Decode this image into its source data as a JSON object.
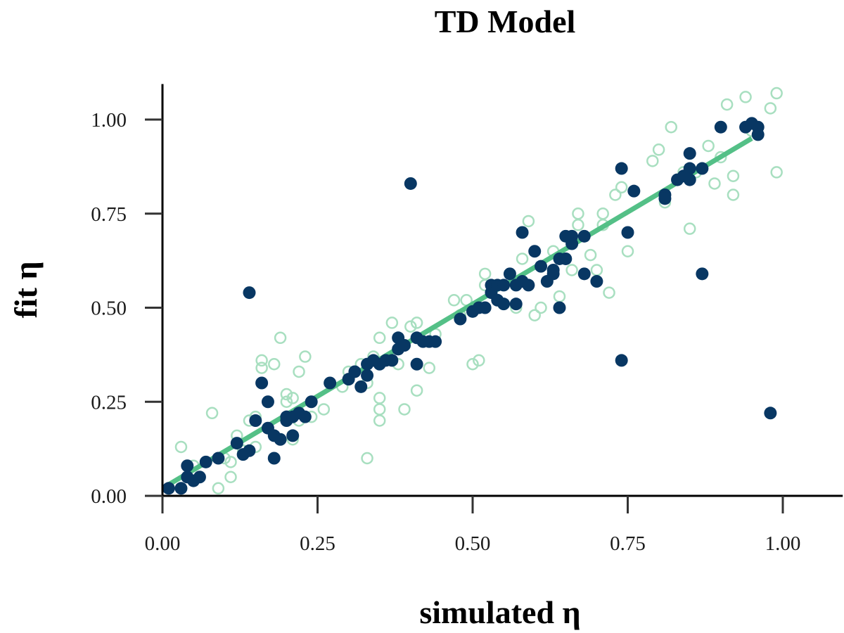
{
  "chart_data": {
    "type": "scatter",
    "title": "TD Model",
    "xlabel": "simulated η",
    "ylabel": "fit η",
    "xlim": [
      0.0,
      1.1
    ],
    "ylim": [
      0.0,
      1.1
    ],
    "xticks": [
      0.0,
      0.25,
      0.5,
      0.75,
      1.0
    ],
    "yticks": [
      0.0,
      0.25,
      0.5,
      0.75,
      1.0
    ],
    "xtick_labels": [
      "0.00",
      "0.25",
      "0.50",
      "0.75",
      "1.00"
    ],
    "ytick_labels": [
      "0.00",
      "0.25",
      "0.50",
      "0.75",
      "1.00"
    ],
    "grid": false,
    "legend": null,
    "colors": {
      "filled": "#083763",
      "open": "#a8dfc0",
      "line": "#54c087",
      "axis": "#000000",
      "tick": "#333333"
    },
    "fit_line": {
      "x": [
        0.01,
        0.95
      ],
      "y": [
        0.03,
        0.95
      ]
    },
    "series": [
      {
        "name": "open",
        "marker": "open-circle",
        "points": [
          [
            0.03,
            0.13
          ],
          [
            0.05,
            0.08
          ],
          [
            0.08,
            0.22
          ],
          [
            0.09,
            0.02
          ],
          [
            0.1,
            0.1
          ],
          [
            0.11,
            0.05
          ],
          [
            0.11,
            0.09
          ],
          [
            0.12,
            0.16
          ],
          [
            0.13,
            0.12
          ],
          [
            0.14,
            0.2
          ],
          [
            0.15,
            0.13
          ],
          [
            0.15,
            0.21
          ],
          [
            0.16,
            0.36
          ],
          [
            0.16,
            0.34
          ],
          [
            0.18,
            0.35
          ],
          [
            0.19,
            0.42
          ],
          [
            0.2,
            0.27
          ],
          [
            0.2,
            0.25
          ],
          [
            0.21,
            0.26
          ],
          [
            0.21,
            0.15
          ],
          [
            0.22,
            0.33
          ],
          [
            0.22,
            0.2
          ],
          [
            0.23,
            0.37
          ],
          [
            0.24,
            0.21
          ],
          [
            0.26,
            0.23
          ],
          [
            0.29,
            0.29
          ],
          [
            0.3,
            0.33
          ],
          [
            0.32,
            0.35
          ],
          [
            0.33,
            0.1
          ],
          [
            0.33,
            0.3
          ],
          [
            0.34,
            0.37
          ],
          [
            0.35,
            0.2
          ],
          [
            0.35,
            0.23
          ],
          [
            0.35,
            0.26
          ],
          [
            0.35,
            0.42
          ],
          [
            0.37,
            0.46
          ],
          [
            0.38,
            0.35
          ],
          [
            0.39,
            0.23
          ],
          [
            0.4,
            0.45
          ],
          [
            0.41,
            0.28
          ],
          [
            0.41,
            0.46
          ],
          [
            0.43,
            0.34
          ],
          [
            0.44,
            0.43
          ],
          [
            0.47,
            0.52
          ],
          [
            0.48,
            0.48
          ],
          [
            0.49,
            0.52
          ],
          [
            0.5,
            0.35
          ],
          [
            0.51,
            0.36
          ],
          [
            0.52,
            0.59
          ],
          [
            0.52,
            0.56
          ],
          [
            0.55,
            0.51
          ],
          [
            0.57,
            0.5
          ],
          [
            0.58,
            0.63
          ],
          [
            0.59,
            0.73
          ],
          [
            0.6,
            0.48
          ],
          [
            0.61,
            0.5
          ],
          [
            0.63,
            0.65
          ],
          [
            0.64,
            0.53
          ],
          [
            0.66,
            0.6
          ],
          [
            0.67,
            0.75
          ],
          [
            0.67,
            0.72
          ],
          [
            0.69,
            0.64
          ],
          [
            0.7,
            0.6
          ],
          [
            0.71,
            0.75
          ],
          [
            0.71,
            0.72
          ],
          [
            0.72,
            0.54
          ],
          [
            0.73,
            0.8
          ],
          [
            0.74,
            0.82
          ],
          [
            0.75,
            0.65
          ],
          [
            0.79,
            0.89
          ],
          [
            0.8,
            0.92
          ],
          [
            0.81,
            0.78
          ],
          [
            0.82,
            0.98
          ],
          [
            0.84,
            0.86
          ],
          [
            0.85,
            0.71
          ],
          [
            0.86,
            0.86
          ],
          [
            0.88,
            0.93
          ],
          [
            0.89,
            0.83
          ],
          [
            0.9,
            0.9
          ],
          [
            0.91,
            1.04
          ],
          [
            0.92,
            0.8
          ],
          [
            0.92,
            0.85
          ],
          [
            0.94,
            1.06
          ],
          [
            0.95,
            0.97
          ],
          [
            0.98,
            1.03
          ],
          [
            0.99,
            1.07
          ],
          [
            0.99,
            0.86
          ]
        ]
      },
      {
        "name": "filled",
        "marker": "filled-circle",
        "points": [
          [
            0.01,
            0.02
          ],
          [
            0.03,
            0.02
          ],
          [
            0.04,
            0.08
          ],
          [
            0.04,
            0.05
          ],
          [
            0.05,
            0.04
          ],
          [
            0.06,
            0.05
          ],
          [
            0.07,
            0.09
          ],
          [
            0.09,
            0.1
          ],
          [
            0.12,
            0.14
          ],
          [
            0.13,
            0.11
          ],
          [
            0.14,
            0.12
          ],
          [
            0.14,
            0.54
          ],
          [
            0.15,
            0.2
          ],
          [
            0.16,
            0.3
          ],
          [
            0.17,
            0.25
          ],
          [
            0.17,
            0.18
          ],
          [
            0.18,
            0.16
          ],
          [
            0.18,
            0.1
          ],
          [
            0.19,
            0.15
          ],
          [
            0.2,
            0.2
          ],
          [
            0.2,
            0.21
          ],
          [
            0.21,
            0.16
          ],
          [
            0.21,
            0.21
          ],
          [
            0.22,
            0.22
          ],
          [
            0.23,
            0.21
          ],
          [
            0.24,
            0.25
          ],
          [
            0.27,
            0.3
          ],
          [
            0.3,
            0.31
          ],
          [
            0.31,
            0.33
          ],
          [
            0.32,
            0.29
          ],
          [
            0.33,
            0.32
          ],
          [
            0.33,
            0.35
          ],
          [
            0.34,
            0.36
          ],
          [
            0.35,
            0.35
          ],
          [
            0.36,
            0.36
          ],
          [
            0.37,
            0.36
          ],
          [
            0.38,
            0.42
          ],
          [
            0.38,
            0.39
          ],
          [
            0.39,
            0.4
          ],
          [
            0.41,
            0.35
          ],
          [
            0.41,
            0.42
          ],
          [
            0.42,
            0.41
          ],
          [
            0.43,
            0.41
          ],
          [
            0.44,
            0.41
          ],
          [
            0.4,
            0.83
          ],
          [
            0.48,
            0.47
          ],
          [
            0.5,
            0.49
          ],
          [
            0.51,
            0.5
          ],
          [
            0.52,
            0.5
          ],
          [
            0.53,
            0.54
          ],
          [
            0.53,
            0.56
          ],
          [
            0.54,
            0.56
          ],
          [
            0.54,
            0.52
          ],
          [
            0.55,
            0.51
          ],
          [
            0.55,
            0.56
          ],
          [
            0.56,
            0.59
          ],
          [
            0.57,
            0.51
          ],
          [
            0.57,
            0.56
          ],
          [
            0.58,
            0.57
          ],
          [
            0.58,
            0.7
          ],
          [
            0.59,
            0.56
          ],
          [
            0.6,
            0.65
          ],
          [
            0.61,
            0.61
          ],
          [
            0.62,
            0.57
          ],
          [
            0.63,
            0.59
          ],
          [
            0.63,
            0.6
          ],
          [
            0.64,
            0.63
          ],
          [
            0.64,
            0.5
          ],
          [
            0.65,
            0.63
          ],
          [
            0.65,
            0.69
          ],
          [
            0.66,
            0.69
          ],
          [
            0.66,
            0.67
          ],
          [
            0.68,
            0.69
          ],
          [
            0.68,
            0.59
          ],
          [
            0.7,
            0.57
          ],
          [
            0.74,
            0.87
          ],
          [
            0.74,
            0.36
          ],
          [
            0.75,
            0.7
          ],
          [
            0.76,
            0.81
          ],
          [
            0.81,
            0.8
          ],
          [
            0.81,
            0.79
          ],
          [
            0.83,
            0.84
          ],
          [
            0.84,
            0.85
          ],
          [
            0.85,
            0.87
          ],
          [
            0.85,
            0.91
          ],
          [
            0.85,
            0.84
          ],
          [
            0.87,
            0.59
          ],
          [
            0.87,
            0.87
          ],
          [
            0.9,
            0.98
          ],
          [
            0.94,
            0.98
          ],
          [
            0.95,
            0.99
          ],
          [
            0.96,
            0.98
          ],
          [
            0.96,
            0.96
          ],
          [
            0.98,
            0.22
          ]
        ]
      }
    ]
  }
}
